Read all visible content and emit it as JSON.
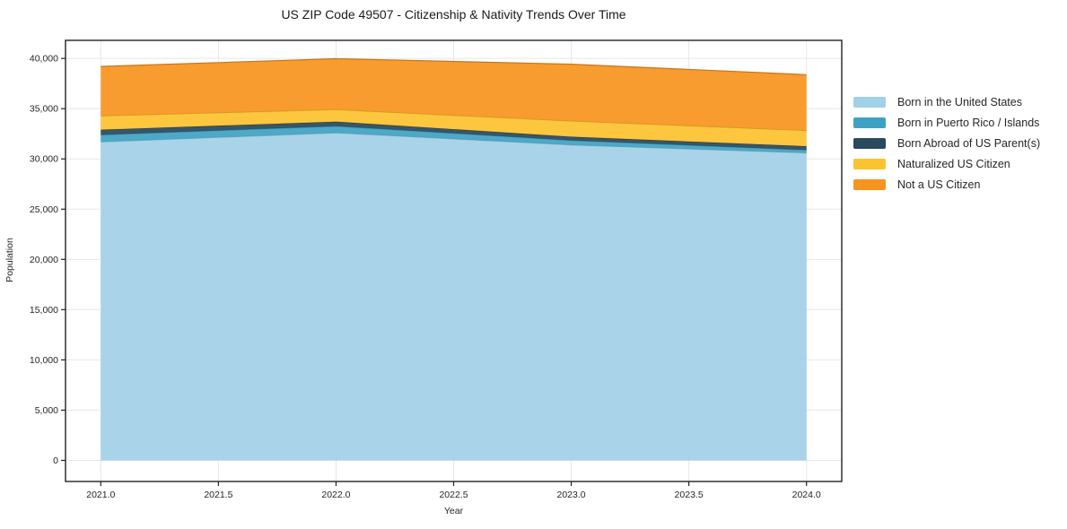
{
  "chart_data": {
    "type": "area",
    "stacked": true,
    "title": "US ZIP Code 49507 - Citizenship & Nativity Trends Over Time",
    "xlabel": "Year",
    "ylabel": "Population",
    "x": [
      2021,
      2022,
      2023,
      2024
    ],
    "series": [
      {
        "name": "Born in the United States",
        "color": "#a1d0e7",
        "values": [
          31700,
          32600,
          31400,
          30600
        ]
      },
      {
        "name": "Born in Puerto Rico / Islands",
        "color": "#3ea3c3",
        "values": [
          700,
          670,
          450,
          300
        ]
      },
      {
        "name": "Born Abroad of US Parent(s)",
        "color": "#29495c",
        "values": [
          500,
          440,
          360,
          360
        ]
      },
      {
        "name": "Naturalized US Citizen",
        "color": "#fcc330",
        "values": [
          1400,
          1200,
          1570,
          1570
        ]
      },
      {
        "name": "Not a US Citizen",
        "color": "#f7941f",
        "values": [
          4900,
          5060,
          5650,
          5550
        ]
      }
    ],
    "totals": [
      39200,
      39970,
      39430,
      38380
    ],
    "xlim": [
      2020.85,
      2024.15
    ],
    "ylim": [
      -2100,
      41800
    ],
    "x_ticks": {
      "values": [
        2021,
        2021.5,
        2022,
        2022.5,
        2023,
        2023.5,
        2024
      ],
      "labels": [
        "2021.0",
        "2021.5",
        "2022.0",
        "2022.5",
        "2023.0",
        "2023.5",
        "2024.0"
      ]
    },
    "y_ticks": {
      "values": [
        0,
        5000,
        10000,
        15000,
        20000,
        25000,
        30000,
        35000,
        40000
      ],
      "labels": [
        "0",
        "5,000",
        "10,000",
        "15,000",
        "20,000",
        "25,000",
        "30,000",
        "35,000",
        "40,000"
      ]
    },
    "grid": true,
    "grid_color": "#e7e7e7",
    "spine_color": "#222222",
    "legend_position": "right"
  }
}
